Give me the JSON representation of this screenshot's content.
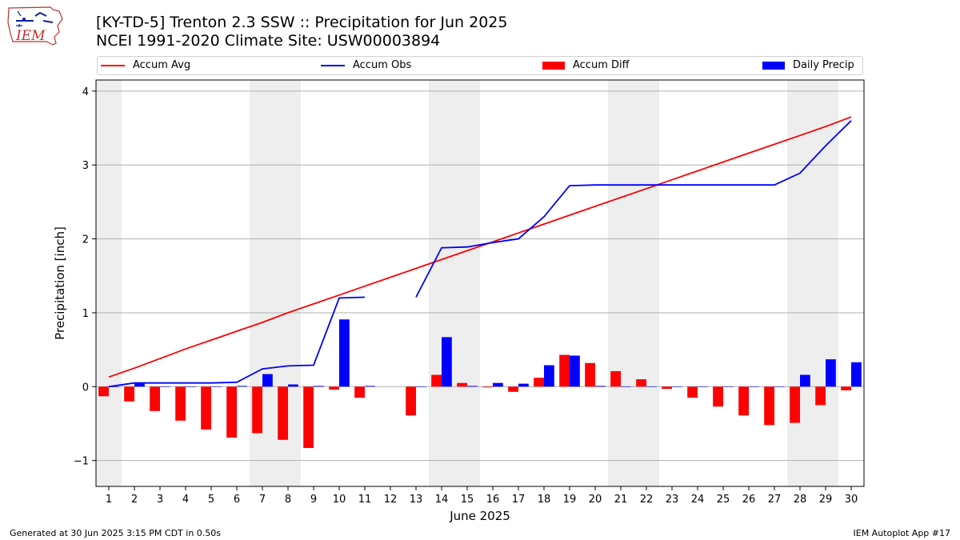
{
  "header": {
    "title_line1": "[KY-TD-5] Trenton 2.3 SSW :: Precipitation for Jun 2025",
    "title_line2": "NCEI 1991-2020 Climate Site: USW00003894"
  },
  "logo": {
    "text": "IEM",
    "icon": "iem-state-map-logo"
  },
  "footer": {
    "left": "Generated at 30 Jun 2025 3:15 PM CDT in 0.50s",
    "right": "IEM Autoplot App #17"
  },
  "colors": {
    "avg": "#ff0000",
    "obs": "#0000ff",
    "diff": "#ff0000",
    "daily": "#0000ff",
    "weekend": "#eeeeee",
    "grid": "#b0b0b0"
  },
  "chart_data": {
    "type": "bar",
    "xlabel": "June 2025",
    "ylabel": "Precipitation [inch]",
    "xlim": [
      0.5,
      30.5
    ],
    "ylim": [
      -1.35,
      4.15
    ],
    "yticks": [
      -1,
      0,
      1,
      2,
      3,
      4
    ],
    "ytick_labels": [
      "−1",
      "0",
      "1",
      "2",
      "3",
      "4"
    ],
    "days": [
      1,
      2,
      3,
      4,
      5,
      6,
      7,
      8,
      9,
      10,
      11,
      12,
      13,
      14,
      15,
      16,
      17,
      18,
      19,
      20,
      21,
      22,
      23,
      24,
      25,
      26,
      27,
      28,
      29,
      30
    ],
    "weekend_spans": [
      [
        0.5,
        1.5
      ],
      [
        6.5,
        8.5
      ],
      [
        13.5,
        15.5
      ],
      [
        20.5,
        22.5
      ],
      [
        27.5,
        29.5
      ]
    ],
    "grid": true,
    "legend_position": "top",
    "series": [
      {
        "name": "Accum Avg",
        "kind": "line",
        "values": [
          0.13,
          0.25,
          0.38,
          0.51,
          0.63,
          0.75,
          0.87,
          1.0,
          1.12,
          1.24,
          1.36,
          1.48,
          1.6,
          1.72,
          1.84,
          1.96,
          2.08,
          2.2,
          2.32,
          2.44,
          2.56,
          2.68,
          2.8,
          2.92,
          3.04,
          3.16,
          3.28,
          3.4,
          3.52,
          3.65
        ]
      },
      {
        "name": "Accum Obs",
        "kind": "line",
        "values": [
          0.0,
          0.05,
          0.05,
          0.05,
          0.05,
          0.06,
          0.24,
          0.28,
          0.29,
          1.2,
          1.21,
          null,
          1.21,
          1.88,
          1.89,
          1.95,
          2.0,
          2.3,
          2.72,
          2.73,
          2.73,
          2.73,
          2.73,
          2.73,
          2.73,
          2.73,
          2.73,
          2.89,
          3.26,
          3.6
        ]
      },
      {
        "name": "Accum Diff",
        "kind": "bar",
        "values": [
          -0.13,
          -0.2,
          -0.33,
          -0.46,
          -0.58,
          -0.69,
          -0.63,
          -0.72,
          -0.83,
          -0.04,
          -0.15,
          null,
          -0.39,
          0.16,
          0.05,
          -0.01,
          -0.07,
          0.12,
          0.43,
          0.32,
          0.21,
          0.1,
          -0.03,
          -0.15,
          -0.27,
          -0.39,
          -0.52,
          -0.49,
          -0.25,
          -0.05
        ]
      },
      {
        "name": "Daily Precip",
        "kind": "bar",
        "values": [
          0.0,
          0.05,
          0.0,
          0.0,
          0.0,
          0.01,
          0.17,
          0.03,
          0.01,
          0.91,
          0.01,
          null,
          0.0,
          0.67,
          0.01,
          0.05,
          0.04,
          0.29,
          0.42,
          0.01,
          0.0,
          0.0,
          0.0,
          0.0,
          0.0,
          0.0,
          0.0,
          0.16,
          0.37,
          0.33
        ]
      }
    ]
  }
}
